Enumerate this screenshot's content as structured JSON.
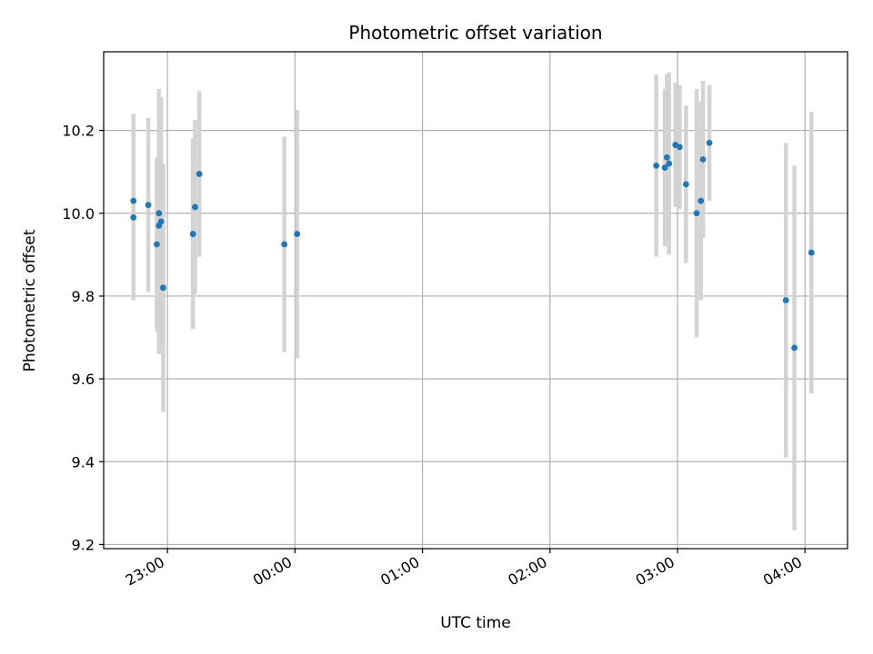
{
  "chart_data": {
    "type": "scatter",
    "title": "Photometric offset variation",
    "xlabel": "UTC time",
    "ylabel": "Photometric offset",
    "x_ticks": [
      "23:00",
      "00:00",
      "01:00",
      "02:00",
      "03:00",
      "04:00"
    ],
    "y_ticks": [
      "9.2",
      "9.4",
      "9.6",
      "9.8",
      "10.0",
      "10.2"
    ],
    "xlim": [
      "22:30",
      "04:20"
    ],
    "ylim": [
      9.19,
      10.39
    ],
    "grid": true,
    "point_color": "#1f77b4",
    "errorbar_color": "#d3d3d3",
    "series": [
      {
        "points": [
          {
            "t": "22:44",
            "y": 9.99,
            "err": 0.2
          },
          {
            "t": "22:44",
            "y": 10.03,
            "err": 0.21
          },
          {
            "t": "22:51",
            "y": 10.02,
            "err": 0.21
          },
          {
            "t": "22:55",
            "y": 9.925,
            "err": 0.21
          },
          {
            "t": "22:56",
            "y": 9.97,
            "err": 0.31
          },
          {
            "t": "22:56",
            "y": 10.0,
            "err": 0.3
          },
          {
            "t": "22:57",
            "y": 9.98,
            "err": 0.3
          },
          {
            "t": "22:58",
            "y": 9.82,
            "err": 0.3
          },
          {
            "t": "23:12",
            "y": 9.95,
            "err": 0.23
          },
          {
            "t": "23:13",
            "y": 10.015,
            "err": 0.21
          },
          {
            "t": "23:15",
            "y": 10.095,
            "err": 0.2
          },
          {
            "t": "23:55",
            "y": 9.925,
            "err": 0.26
          },
          {
            "t": "00:01",
            "y": 9.95,
            "err": 0.3
          },
          {
            "t": "02:50",
            "y": 10.115,
            "err": 0.22
          },
          {
            "t": "02:54",
            "y": 10.11,
            "err": 0.19
          },
          {
            "t": "02:55",
            "y": 10.135,
            "err": 0.2
          },
          {
            "t": "02:56",
            "y": 10.12,
            "err": 0.22
          },
          {
            "t": "02:59",
            "y": 10.165,
            "err": 0.15
          },
          {
            "t": "03:01",
            "y": 10.16,
            "err": 0.15
          },
          {
            "t": "03:04",
            "y": 10.07,
            "err": 0.19
          },
          {
            "t": "03:09",
            "y": 10.0,
            "err": 0.3
          },
          {
            "t": "03:11",
            "y": 10.03,
            "err": 0.24
          },
          {
            "t": "03:12",
            "y": 10.13,
            "err": 0.19
          },
          {
            "t": "03:15",
            "y": 10.17,
            "err": 0.14
          },
          {
            "t": "03:51",
            "y": 9.79,
            "err": 0.38
          },
          {
            "t": "03:55",
            "y": 9.675,
            "err": 0.44
          },
          {
            "t": "04:03",
            "y": 9.905,
            "err": 0.34
          }
        ]
      }
    ]
  }
}
